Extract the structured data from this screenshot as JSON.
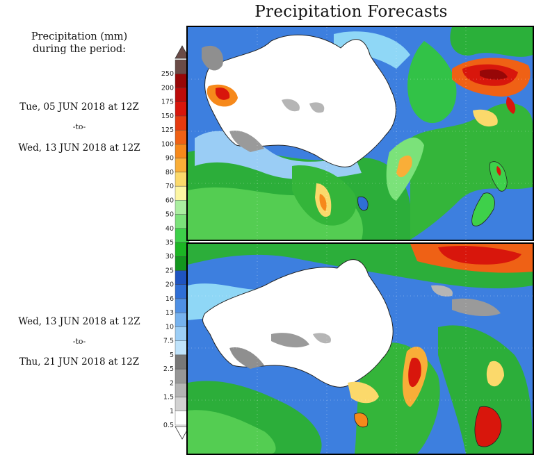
{
  "title": "Precipitation Forecasts",
  "subtitle_line1": "Precipitation (mm)",
  "subtitle_line2": "during the period:",
  "periods": [
    {
      "start": "Tue, 05 JUN 2018 at 12Z",
      "to": "-to-",
      "end": "Wed, 13 JUN 2018 at 12Z"
    },
    {
      "start": "Wed, 13 JUN 2018 at 12Z",
      "to": "-to-",
      "end": "Thu, 21 JUN 2018 at 12Z"
    }
  ],
  "legend": {
    "levels": [
      "0.5",
      "1",
      "1.5",
      "2",
      "2.5",
      "5",
      "7.5",
      "10",
      "13",
      "16",
      "20",
      "25",
      "30",
      "35",
      "40",
      "50",
      "60",
      "70",
      "80",
      "90",
      "100",
      "125",
      "150",
      "175",
      "200",
      "250"
    ],
    "colors": [
      "#ffffff",
      "#d2d2d2",
      "#b4b4b4",
      "#969696",
      "#787878",
      "#bfe3fb",
      "#9ccef6",
      "#76b2ee",
      "#4f90e4",
      "#2f6fd6",
      "#1f54c1",
      "#13961f",
      "#1cb624",
      "#3ed04a",
      "#7be27a",
      "#aaeea0",
      "#fdf6a3",
      "#fbd96b",
      "#f9ae38",
      "#f6891b",
      "#ef6115",
      "#e53a10",
      "#d8160c",
      "#bc0b0a",
      "#970707",
      "#6a4b47"
    ]
  },
  "icons": {
    "colorbar_top": "triangle-up-icon",
    "colorbar_bottom": "triangle-down-icon"
  }
}
